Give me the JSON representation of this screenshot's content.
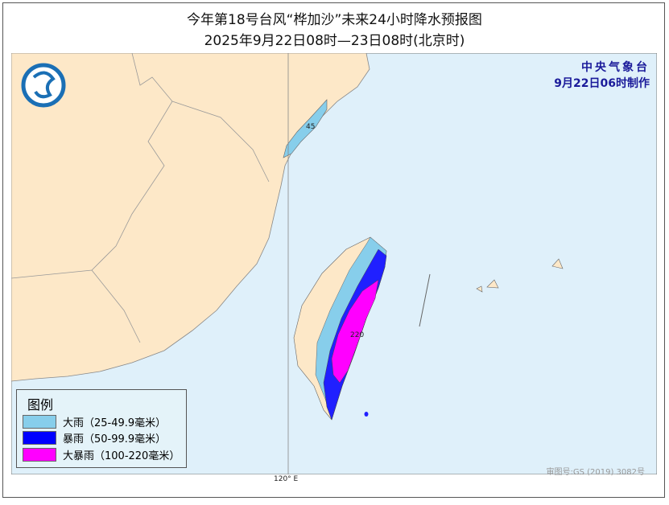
{
  "title": "今年第18号台风“桦加沙”未来24小时降水预报图",
  "subtitle": "2025年9月22日08时—23日08时(北京时)",
  "agency": {
    "name": "中央气象台",
    "issued": "9月22日06时制作"
  },
  "map": {
    "max_label": "220",
    "fujian_label": "45",
    "longitude_label": "120° E",
    "approval": "审图号:GS (2019) 3082号"
  },
  "legend": {
    "title": "图例",
    "items": [
      {
        "label": "大雨（25-49.9毫米）",
        "color": "#87ceeb"
      },
      {
        "label": "暴雨（50-99.9毫米）",
        "color": "#0000ff"
      },
      {
        "label": "大暴雨（100-220毫米）",
        "color": "#ff00ff"
      }
    ]
  },
  "colors": {
    "land": "#fde8c8",
    "sea": "#dff0fa"
  }
}
